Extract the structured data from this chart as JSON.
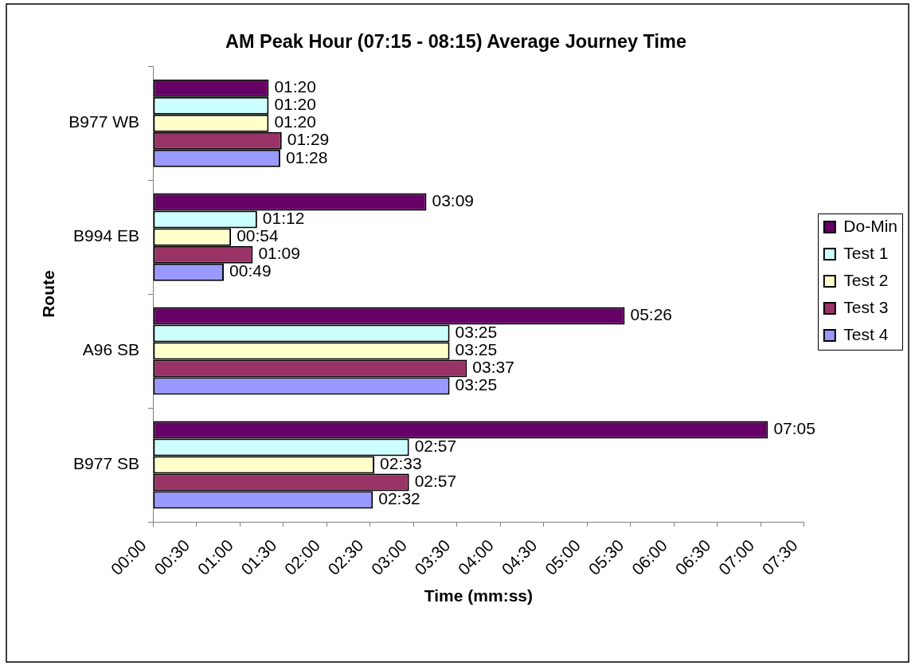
{
  "chart_data": {
    "type": "bar",
    "orientation": "horizontal",
    "title": "AM Peak Hour (07:15 - 08:15) Average Journey Time",
    "xlabel": "Time (mm:ss)",
    "ylabel": "Route",
    "categories": [
      "B977 WB",
      "B994 EB",
      "A96 SB",
      "B977 SB"
    ],
    "series": [
      {
        "name": "Do-Min",
        "color": "#660066",
        "values": [
          80,
          189,
          326,
          425
        ],
        "value_labels": [
          "01:20",
          "03:09",
          "05:26",
          "07:05"
        ]
      },
      {
        "name": "Test 1",
        "color": "#ccffff",
        "values": [
          80,
          72,
          205,
          177
        ],
        "value_labels": [
          "01:20",
          "01:12",
          "03:25",
          "02:57"
        ]
      },
      {
        "name": "Test 2",
        "color": "#ffffcc",
        "values": [
          80,
          54,
          205,
          153
        ],
        "value_labels": [
          "01:20",
          "00:54",
          "03:25",
          "02:33"
        ]
      },
      {
        "name": "Test 3",
        "color": "#993366",
        "values": [
          89,
          69,
          217,
          177
        ],
        "value_labels": [
          "01:29",
          "01:09",
          "03:37",
          "02:57"
        ]
      },
      {
        "name": "Test 4",
        "color": "#9999ff",
        "values": [
          88,
          49,
          205,
          152
        ],
        "value_labels": [
          "01:28",
          "00:49",
          "03:25",
          "02:32"
        ]
      }
    ],
    "xlim": [
      0,
      450
    ],
    "xticks": [
      {
        "value": 0,
        "label": "00:00"
      },
      {
        "value": 30,
        "label": "00:30"
      },
      {
        "value": 60,
        "label": "01:00"
      },
      {
        "value": 90,
        "label": "01:30"
      },
      {
        "value": 120,
        "label": "02:00"
      },
      {
        "value": 150,
        "label": "02:30"
      },
      {
        "value": 180,
        "label": "03:00"
      },
      {
        "value": 210,
        "label": "03:30"
      },
      {
        "value": 240,
        "label": "04:00"
      },
      {
        "value": 270,
        "label": "04:30"
      },
      {
        "value": 300,
        "label": "05:00"
      },
      {
        "value": 330,
        "label": "05:30"
      },
      {
        "value": 360,
        "label": "06:00"
      },
      {
        "value": 390,
        "label": "06:30"
      },
      {
        "value": 420,
        "label": "07:00"
      },
      {
        "value": 450,
        "label": "07:30"
      }
    ],
    "legend": "right"
  }
}
